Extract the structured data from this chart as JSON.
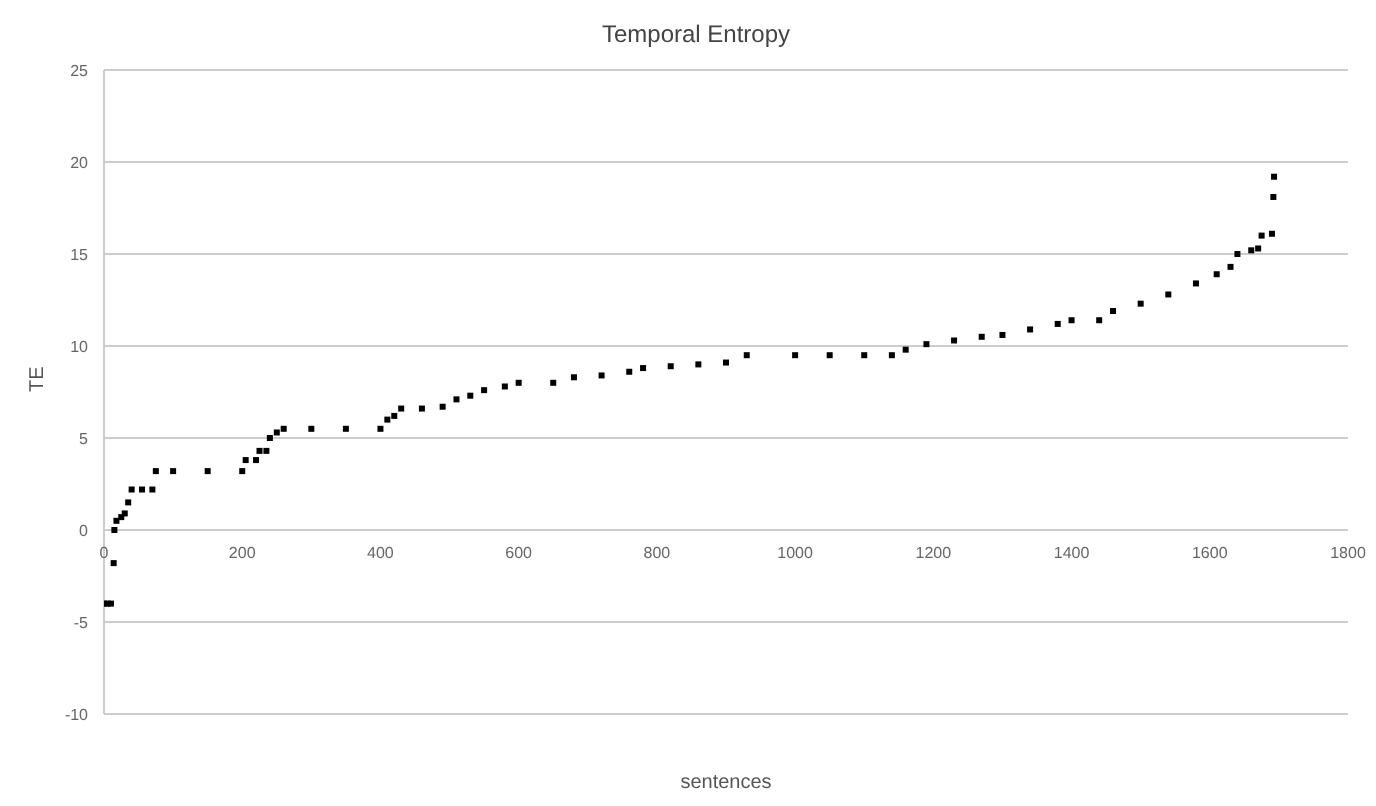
{
  "chart_data": {
    "type": "scatter",
    "title": "Temporal Entropy",
    "xlabel": "sentences",
    "ylabel": "TE",
    "x": [
      0,
      5,
      10,
      14,
      15,
      18,
      25,
      30,
      35,
      40,
      55,
      70,
      75,
      100,
      150,
      200,
      205,
      220,
      225,
      235,
      240,
      250,
      260,
      300,
      350,
      400,
      410,
      420,
      430,
      460,
      490,
      510,
      530,
      550,
      580,
      600,
      650,
      680,
      720,
      760,
      780,
      820,
      860,
      900,
      930,
      1000,
      1050,
      1100,
      1140,
      1160,
      1190,
      1230,
      1270,
      1300,
      1340,
      1380,
      1400,
      1440,
      1460,
      1500,
      1540,
      1580,
      1610,
      1630,
      1640,
      1660,
      1670,
      1675,
      1690,
      1692,
      1693
    ],
    "series": [
      {
        "color": "#000000",
        "values": [
          -4,
          -4,
          -4,
          -1.8,
          0,
          0.5,
          0.7,
          0.9,
          1.5,
          2.2,
          2.2,
          2.2,
          3.2,
          3.2,
          3.2,
          3.2,
          3.8,
          3.8,
          4.3,
          4.3,
          5.0,
          5.3,
          5.5,
          5.5,
          5.5,
          5.5,
          6.0,
          6.2,
          6.6,
          6.6,
          6.7,
          7.1,
          7.3,
          7.6,
          7.8,
          8.0,
          8.0,
          8.3,
          8.4,
          8.6,
          8.8,
          8.9,
          9.0,
          9.1,
          9.5,
          9.5,
          9.5,
          9.5,
          9.5,
          9.8,
          10.1,
          10.3,
          10.5,
          10.6,
          10.9,
          11.2,
          11.4,
          11.4,
          11.9,
          12.3,
          12.8,
          13.4,
          13.9,
          14.3,
          15.0,
          15.2,
          15.3,
          16.0,
          16.1,
          18.1,
          19.2
        ]
      }
    ],
    "xlim": [
      0,
      1800
    ],
    "xticks": [
      0,
      200,
      400,
      600,
      800,
      1000,
      1200,
      1400,
      1600,
      1800
    ],
    "ylim": [
      -10,
      25
    ],
    "yticks": [
      -10,
      -5,
      0,
      5,
      10,
      15,
      20,
      25
    ],
    "grid": "y",
    "marker": "square"
  }
}
